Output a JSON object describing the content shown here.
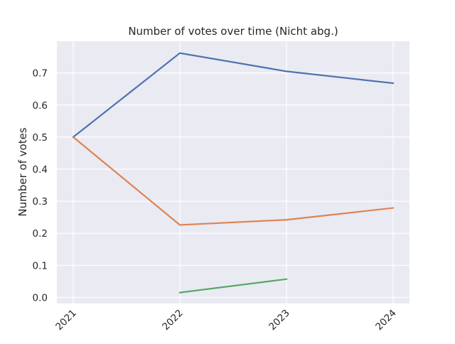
{
  "chart_data": {
    "type": "line",
    "title": "Number of votes over time (Nicht abg.)",
    "xlabel": "",
    "ylabel": "Number of votes",
    "x": [
      "2021",
      "2022",
      "2023",
      "2024"
    ],
    "ylim": [
      -0.019,
      0.799
    ],
    "yticks": [
      0.0,
      0.1,
      0.2,
      0.3,
      0.4,
      0.5,
      0.6,
      0.7
    ],
    "ytick_labels": [
      "0.0",
      "0.1",
      "0.2",
      "0.3",
      "0.4",
      "0.5",
      "0.6",
      "0.7"
    ],
    "grid": true,
    "legend": "none",
    "series": [
      {
        "color": "#4c72b0",
        "values": [
          0.5,
          0.762,
          0.705,
          0.668
        ]
      },
      {
        "color": "#dd8452",
        "values": [
          0.5,
          0.226,
          0.242,
          0.279
        ]
      },
      {
        "color": "#55a868",
        "values": [
          null,
          0.015,
          0.057,
          null
        ]
      }
    ]
  },
  "style": {
    "plot_background": "#eaeaf2",
    "grid_color": "#ffffff",
    "text_color": "#262626"
  }
}
